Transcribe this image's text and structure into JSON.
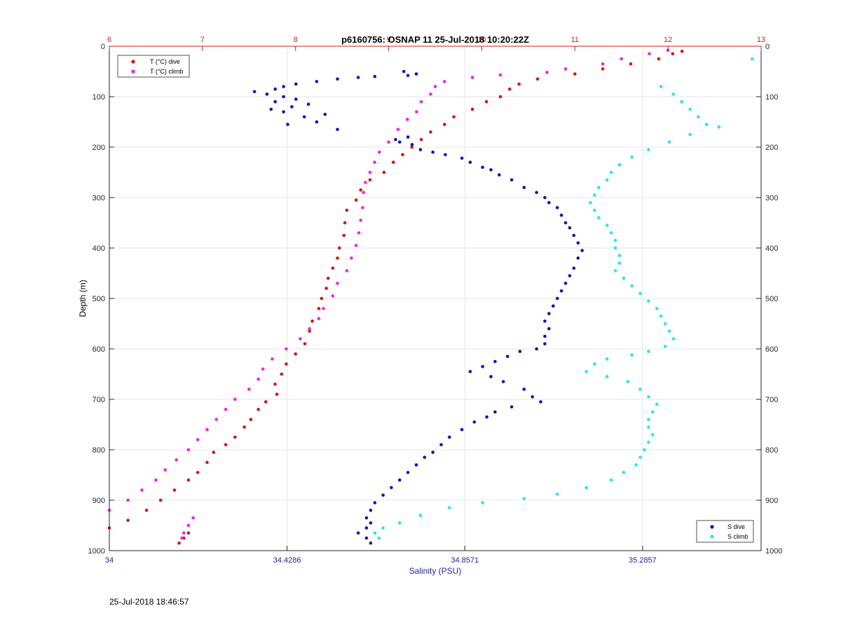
{
  "colors": {
    "temp_axis": "#cc2222",
    "sal_axis": "#2222aa",
    "t_dive": "#dd1111",
    "t_climb": "#ee22ee",
    "s_dive": "#0a14c0",
    "s_climb": "#22e8f0",
    "grid": "#e6e6e6"
  },
  "footer": {
    "timestamp": "25-Jul-2018 18:46:57"
  },
  "chart_data": {
    "type": "scatter",
    "title": "p6160756: OSNAP 11 25-Jul-2018 10:20:22Z",
    "xlabel": "Salinity (PSU)",
    "ylabel": "Depth (m)",
    "grid": true,
    "x_salinity": {
      "lim": [
        34,
        35.5714
      ],
      "ticks": [
        34,
        34.4286,
        34.8571,
        35.2857
      ],
      "tick_labels": [
        "34",
        "34.4286",
        "34.8571",
        "35.2857"
      ]
    },
    "x_temperature": {
      "lim": [
        6,
        13
      ],
      "ticks": [
        6,
        7,
        8,
        9,
        10,
        11,
        12,
        13
      ],
      "tick_labels": [
        "6",
        "7",
        "8",
        "9",
        "10",
        "11",
        "12",
        "13"
      ]
    },
    "y_depth": {
      "lim": [
        0,
        1000
      ],
      "reversed": true,
      "ticks": [
        0,
        100,
        200,
        300,
        400,
        500,
        600,
        700,
        800,
        900,
        1000
      ],
      "tick_labels": [
        "0",
        "100",
        "200",
        "300",
        "400",
        "500",
        "600",
        "700",
        "800",
        "900",
        "1000"
      ]
    },
    "legend_top_left": {
      "placement": "top-left",
      "entries": [
        "T (°C) dive",
        "T (°C) climb"
      ]
    },
    "legend_bottom_right": {
      "placement": "bottom-right",
      "entries": [
        "S dive",
        "S climb"
      ]
    },
    "series": [
      {
        "name": "T (°C) dive",
        "axis": "temperature",
        "points": [
          [
            12.15,
            10
          ],
          [
            12.05,
            15
          ],
          [
            11.9,
            25
          ],
          [
            11.6,
            35
          ],
          [
            11.3,
            45
          ],
          [
            11.0,
            55
          ],
          [
            10.6,
            65
          ],
          [
            10.4,
            75
          ],
          [
            10.3,
            85
          ],
          [
            10.2,
            100
          ],
          [
            10.05,
            110
          ],
          [
            9.9,
            125
          ],
          [
            9.7,
            140
          ],
          [
            9.6,
            155
          ],
          [
            9.45,
            170
          ],
          [
            9.35,
            185
          ],
          [
            9.25,
            200
          ],
          [
            9.15,
            215
          ],
          [
            9.05,
            230
          ],
          [
            8.95,
            250
          ],
          [
            8.8,
            265
          ],
          [
            8.7,
            285
          ],
          [
            8.65,
            305
          ],
          [
            8.55,
            325
          ],
          [
            8.53,
            350
          ],
          [
            8.52,
            375
          ],
          [
            8.47,
            400
          ],
          [
            8.45,
            420
          ],
          [
            8.4,
            440
          ],
          [
            8.35,
            460
          ],
          [
            8.33,
            480
          ],
          [
            8.28,
            500
          ],
          [
            8.25,
            520
          ],
          [
            8.18,
            545
          ],
          [
            8.15,
            565
          ],
          [
            8.1,
            590
          ],
          [
            8.0,
            610
          ],
          [
            7.9,
            630
          ],
          [
            7.85,
            650
          ],
          [
            7.78,
            670
          ],
          [
            7.8,
            690
          ],
          [
            7.68,
            705
          ],
          [
            7.6,
            720
          ],
          [
            7.52,
            740
          ],
          [
            7.45,
            755
          ],
          [
            7.35,
            775
          ],
          [
            7.25,
            790
          ],
          [
            7.12,
            805
          ],
          [
            7.05,
            825
          ],
          [
            6.95,
            845
          ],
          [
            6.85,
            860
          ],
          [
            6.7,
            880
          ],
          [
            6.55,
            900
          ],
          [
            6.4,
            920
          ],
          [
            6.2,
            940
          ],
          [
            6.0,
            955
          ],
          [
            6.85,
            965
          ],
          [
            6.8,
            975
          ],
          [
            6.75,
            985
          ]
        ]
      },
      {
        "name": "T (°C) climb",
        "axis": "temperature",
        "points": [
          [
            12.0,
            8
          ],
          [
            11.8,
            15
          ],
          [
            11.5,
            25
          ],
          [
            11.3,
            35
          ],
          [
            10.9,
            45
          ],
          [
            10.7,
            52
          ],
          [
            10.2,
            57
          ],
          [
            9.9,
            62
          ],
          [
            9.6,
            70
          ],
          [
            9.5,
            80
          ],
          [
            9.45,
            95
          ],
          [
            9.35,
            110
          ],
          [
            9.3,
            130
          ],
          [
            9.2,
            145
          ],
          [
            9.1,
            165
          ],
          [
            9.0,
            190
          ],
          [
            8.9,
            210
          ],
          [
            8.85,
            230
          ],
          [
            8.8,
            250
          ],
          [
            8.75,
            270
          ],
          [
            8.73,
            290
          ],
          [
            8.72,
            320
          ],
          [
            8.7,
            345
          ],
          [
            8.68,
            370
          ],
          [
            8.65,
            395
          ],
          [
            8.6,
            420
          ],
          [
            8.55,
            445
          ],
          [
            8.45,
            470
          ],
          [
            8.4,
            495
          ],
          [
            8.3,
            520
          ],
          [
            8.25,
            540
          ],
          [
            8.15,
            560
          ],
          [
            8.05,
            580
          ],
          [
            7.9,
            600
          ],
          [
            7.75,
            620
          ],
          [
            7.65,
            640
          ],
          [
            7.6,
            660
          ],
          [
            7.5,
            680
          ],
          [
            7.35,
            700
          ],
          [
            7.25,
            720
          ],
          [
            7.15,
            740
          ],
          [
            7.05,
            760
          ],
          [
            6.95,
            780
          ],
          [
            6.85,
            800
          ],
          [
            6.72,
            820
          ],
          [
            6.6,
            840
          ],
          [
            6.5,
            860
          ],
          [
            6.35,
            880
          ],
          [
            6.2,
            900
          ],
          [
            6.0,
            920
          ],
          [
            6.9,
            935
          ],
          [
            6.85,
            950
          ],
          [
            6.8,
            965
          ],
          [
            6.78,
            975
          ]
        ]
      },
      {
        "name": "S dive",
        "axis": "salinity",
        "points": [
          [
            34.71,
            50
          ],
          [
            34.74,
            55
          ],
          [
            34.72,
            58
          ],
          [
            34.64,
            60
          ],
          [
            34.6,
            62
          ],
          [
            34.55,
            65
          ],
          [
            34.5,
            70
          ],
          [
            34.45,
            75
          ],
          [
            34.42,
            80
          ],
          [
            34.4,
            85
          ],
          [
            34.35,
            90
          ],
          [
            34.38,
            95
          ],
          [
            34.42,
            100
          ],
          [
            34.45,
            105
          ],
          [
            34.4,
            110
          ],
          [
            34.48,
            115
          ],
          [
            34.44,
            120
          ],
          [
            34.39,
            125
          ],
          [
            34.42,
            130
          ],
          [
            34.52,
            135
          ],
          [
            34.47,
            140
          ],
          [
            34.5,
            150
          ],
          [
            34.43,
            155
          ],
          [
            34.55,
            165
          ],
          [
            34.72,
            180
          ],
          [
            34.69,
            185
          ],
          [
            34.7,
            190
          ],
          [
            34.73,
            195
          ],
          [
            34.75,
            205
          ],
          [
            34.78,
            210
          ],
          [
            34.81,
            215
          ],
          [
            34.85,
            222
          ],
          [
            34.87,
            230
          ],
          [
            34.9,
            240
          ],
          [
            34.92,
            245
          ],
          [
            34.94,
            255
          ],
          [
            34.97,
            265
          ],
          [
            35.0,
            280
          ],
          [
            35.03,
            290
          ],
          [
            35.05,
            300
          ],
          [
            35.06,
            310
          ],
          [
            35.08,
            320
          ],
          [
            35.09,
            335
          ],
          [
            35.1,
            350
          ],
          [
            35.11,
            360
          ],
          [
            35.12,
            375
          ],
          [
            35.13,
            390
          ],
          [
            35.14,
            405
          ],
          [
            35.13,
            420
          ],
          [
            35.12,
            440
          ],
          [
            35.11,
            455
          ],
          [
            35.1,
            470
          ],
          [
            35.09,
            485
          ],
          [
            35.08,
            500
          ],
          [
            35.07,
            515
          ],
          [
            35.06,
            530
          ],
          [
            35.05,
            545
          ],
          [
            35.06,
            560
          ],
          [
            35.05,
            575
          ],
          [
            35.05,
            590
          ],
          [
            35.03,
            600
          ],
          [
            34.99,
            605
          ],
          [
            34.96,
            615
          ],
          [
            34.93,
            625
          ],
          [
            34.9,
            635
          ],
          [
            34.87,
            645
          ],
          [
            34.92,
            655
          ],
          [
            34.95,
            665
          ],
          [
            35.0,
            680
          ],
          [
            35.02,
            695
          ],
          [
            35.04,
            705
          ],
          [
            34.97,
            715
          ],
          [
            34.93,
            725
          ],
          [
            34.91,
            735
          ],
          [
            34.88,
            745
          ],
          [
            34.85,
            760
          ],
          [
            34.82,
            775
          ],
          [
            34.8,
            790
          ],
          [
            34.78,
            805
          ],
          [
            34.76,
            815
          ],
          [
            34.74,
            830
          ],
          [
            34.72,
            845
          ],
          [
            34.7,
            860
          ],
          [
            34.68,
            875
          ],
          [
            34.66,
            890
          ],
          [
            34.64,
            905
          ],
          [
            34.63,
            920
          ],
          [
            34.62,
            935
          ],
          [
            34.63,
            945
          ],
          [
            34.62,
            955
          ],
          [
            34.6,
            965
          ],
          [
            34.62,
            975
          ],
          [
            34.63,
            985
          ]
        ]
      },
      {
        "name": "S climb",
        "axis": "salinity",
        "points": [
          [
            35.55,
            25
          ],
          [
            35.33,
            80
          ],
          [
            35.36,
            95
          ],
          [
            35.38,
            110
          ],
          [
            35.4,
            125
          ],
          [
            35.42,
            140
          ],
          [
            35.44,
            155
          ],
          [
            35.47,
            160
          ],
          [
            35.4,
            175
          ],
          [
            35.35,
            190
          ],
          [
            35.3,
            205
          ],
          [
            35.26,
            220
          ],
          [
            35.23,
            235
          ],
          [
            35.21,
            250
          ],
          [
            35.2,
            265
          ],
          [
            35.18,
            280
          ],
          [
            35.17,
            295
          ],
          [
            35.16,
            310
          ],
          [
            35.17,
            325
          ],
          [
            35.18,
            340
          ],
          [
            35.2,
            355
          ],
          [
            35.21,
            370
          ],
          [
            35.22,
            385
          ],
          [
            35.22,
            400
          ],
          [
            35.23,
            415
          ],
          [
            35.23,
            430
          ],
          [
            35.22,
            445
          ],
          [
            35.24,
            460
          ],
          [
            35.26,
            475
          ],
          [
            35.28,
            490
          ],
          [
            35.3,
            505
          ],
          [
            35.32,
            520
          ],
          [
            35.33,
            535
          ],
          [
            35.34,
            550
          ],
          [
            35.35,
            565
          ],
          [
            35.36,
            580
          ],
          [
            35.34,
            595
          ],
          [
            35.3,
            605
          ],
          [
            35.26,
            612
          ],
          [
            35.2,
            620
          ],
          [
            35.17,
            630
          ],
          [
            35.15,
            645
          ],
          [
            35.2,
            655
          ],
          [
            35.25,
            665
          ],
          [
            35.28,
            680
          ],
          [
            35.3,
            695
          ],
          [
            35.32,
            710
          ],
          [
            35.31,
            725
          ],
          [
            35.3,
            740
          ],
          [
            35.3,
            755
          ],
          [
            35.31,
            770
          ],
          [
            35.3,
            785
          ],
          [
            35.29,
            800
          ],
          [
            35.28,
            815
          ],
          [
            35.27,
            830
          ],
          [
            35.24,
            845
          ],
          [
            35.21,
            860
          ],
          [
            35.15,
            875
          ],
          [
            35.08,
            888
          ],
          [
            35.0,
            897
          ],
          [
            34.9,
            905
          ],
          [
            34.82,
            915
          ],
          [
            34.75,
            930
          ],
          [
            34.7,
            945
          ],
          [
            34.66,
            955
          ],
          [
            34.64,
            965
          ],
          [
            34.65,
            975
          ]
        ]
      }
    ]
  }
}
